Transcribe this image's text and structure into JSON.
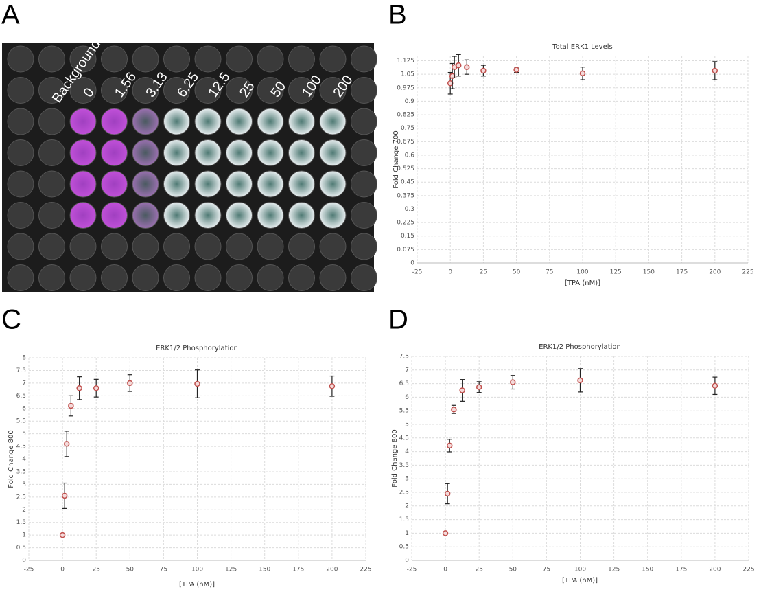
{
  "panel_labels": [
    "A",
    "B",
    "C",
    "D"
  ],
  "plate": {
    "labels": [
      "Background",
      "0",
      "1.56",
      "3.13",
      "6.25",
      "12.5",
      "25",
      "50",
      "100",
      "200"
    ]
  },
  "chart_data": [
    {
      "type": "scatter",
      "title": "Total ERK1 Levels",
      "xlabel": "[TPA (nM)]",
      "ylabel": "Fold Change 700",
      "x": [
        0,
        1.56,
        3.13,
        6.25,
        12.5,
        25,
        50,
        100,
        200
      ],
      "values": [
        1.0,
        1.04,
        1.09,
        1.1,
        1.09,
        1.07,
        1.075,
        1.055,
        1.07
      ],
      "errors": [
        0.06,
        0.07,
        0.06,
        0.06,
        0.04,
        0.03,
        0.015,
        0.035,
        0.05
      ],
      "color": "#c0504d",
      "grid": true,
      "xlim": [
        -25,
        225
      ],
      "xticks": [
        -25,
        0,
        25,
        50,
        75,
        100,
        125,
        150,
        175,
        200,
        225
      ],
      "ylim": [
        0,
        1.15
      ],
      "yticks": [
        0,
        0.075,
        0.15,
        0.225,
        0.3,
        0.375,
        0.45,
        0.525,
        0.6,
        0.675,
        0.75,
        0.825,
        0.9,
        0.975,
        1.05,
        1.125
      ]
    },
    {
      "type": "scatter",
      "title": "ERK1/2 Phosphorylation",
      "xlabel": "[TPA (nM)]",
      "ylabel": "Fold Change 800",
      "x": [
        0,
        1.56,
        3.13,
        6.25,
        12.5,
        25,
        50,
        100,
        200
      ],
      "values": [
        1.0,
        2.55,
        4.6,
        6.1,
        6.8,
        6.8,
        7.0,
        6.97,
        6.88
      ],
      "errors": [
        0.03,
        0.5,
        0.5,
        0.4,
        0.45,
        0.35,
        0.33,
        0.55,
        0.4
      ],
      "color": "#c0504d",
      "grid": true,
      "xlim": [
        -25,
        225
      ],
      "xticks": [
        -25,
        0,
        25,
        50,
        75,
        100,
        125,
        150,
        175,
        200,
        225
      ],
      "ylim": [
        0,
        8
      ],
      "yticks": [
        0,
        0.5,
        1,
        1.5,
        2,
        2.5,
        3,
        3.5,
        4,
        4.5,
        5,
        5.5,
        6,
        6.5,
        7,
        7.5,
        8
      ]
    },
    {
      "type": "scatter",
      "title": "ERK1/2 Phosphorylation",
      "xlabel": "[TPA (nM)]",
      "ylabel": "Fold Change 800",
      "x": [
        0,
        1.56,
        3.13,
        6.25,
        12.5,
        25,
        50,
        100,
        200
      ],
      "values": [
        1.0,
        2.45,
        4.22,
        5.55,
        6.25,
        6.37,
        6.55,
        6.62,
        6.42
      ],
      "errors": [
        0.02,
        0.37,
        0.23,
        0.15,
        0.4,
        0.2,
        0.25,
        0.43,
        0.32
      ],
      "color": "#c0504d",
      "grid": true,
      "xlim": [
        -25,
        225
      ],
      "xticks": [
        -25,
        0,
        25,
        50,
        75,
        100,
        125,
        150,
        175,
        200,
        225
      ],
      "ylim": [
        0,
        7.5
      ],
      "yticks": [
        0,
        0.5,
        1,
        1.5,
        2,
        2.5,
        3,
        3.5,
        4,
        4.5,
        5,
        5.5,
        6,
        6.5,
        7,
        7.5
      ]
    }
  ]
}
